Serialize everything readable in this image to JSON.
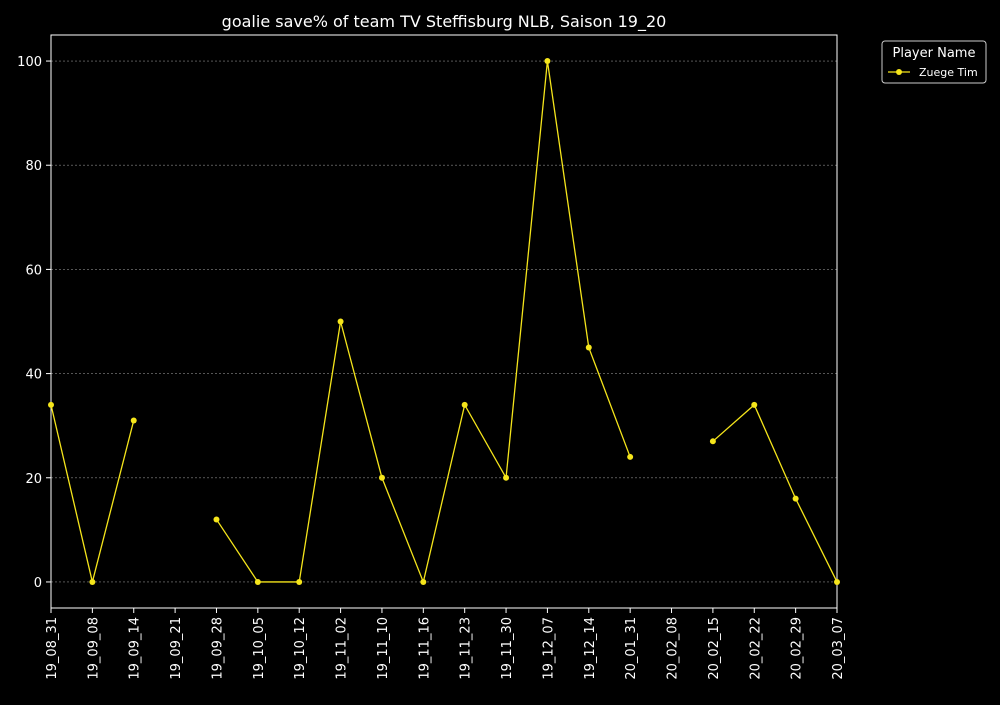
{
  "colors": {
    "background": "#000000",
    "foreground": "#ffffff",
    "series": "#f5e51b",
    "grid": "#8a8a8a"
  },
  "chart_data": {
    "type": "line",
    "title": "goalie save% of team TV Steffisburg NLB, Saison 19_20",
    "xlabel": "",
    "ylabel": "",
    "ylim": [
      -5,
      105
    ],
    "yticks": [
      0,
      20,
      40,
      60,
      80,
      100
    ],
    "grid": true,
    "x": [
      "19_08_31",
      "19_09_08",
      "19_09_14",
      "19_09_21",
      "19_09_28",
      "19_10_05",
      "19_10_12",
      "19_11_02",
      "19_11_10",
      "19_11_16",
      "19_11_23",
      "19_11_30",
      "19_12_07",
      "19_12_14",
      "20_01_31",
      "20_02_08",
      "20_02_15",
      "20_02_22",
      "20_02_29",
      "20_03_07"
    ],
    "legend": {
      "title": "Player Name",
      "position": "outside-right-top"
    },
    "series": [
      {
        "name": "Zuege Tim",
        "values": [
          34,
          0,
          31,
          null,
          12,
          0,
          0,
          50,
          20,
          0,
          34,
          20,
          100,
          45,
          24,
          null,
          27,
          34,
          16,
          0
        ]
      }
    ]
  }
}
